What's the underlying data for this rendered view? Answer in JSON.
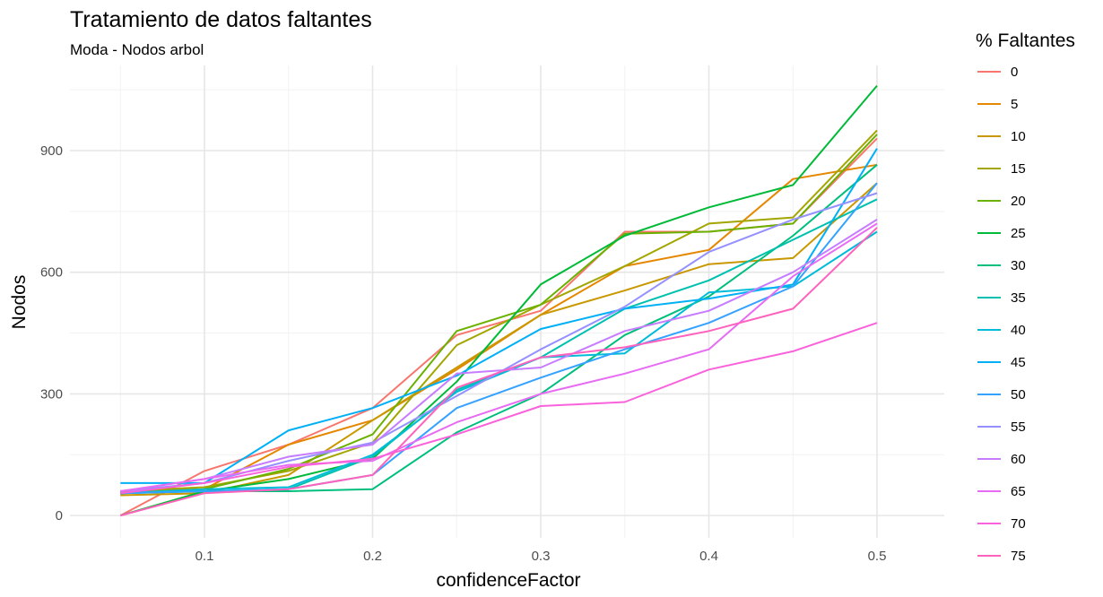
{
  "chart_data": {
    "type": "line",
    "title": "Tratamiento de datos faltantes",
    "subtitle": "Moda - Nodos arbol",
    "xlabel": "confidenceFactor",
    "ylabel": "Nodos",
    "x": [
      0.05,
      0.1,
      0.15,
      0.2,
      0.25,
      0.3,
      0.35,
      0.4,
      0.45,
      0.5
    ],
    "xlim": [
      0.02,
      0.54
    ],
    "ylim": [
      -55,
      1110
    ],
    "x_ticks": [
      "0.1",
      "0.2",
      "0.3",
      "0.4",
      "0.5"
    ],
    "y_ticks": [
      "0",
      "300",
      "600",
      "900"
    ],
    "grid": true,
    "legend_title": "% Faltantes",
    "legend_position": "right",
    "series": [
      {
        "name": "0",
        "color": "#F8766D",
        "values": [
          0,
          110,
          175,
          265,
          445,
          505,
          700,
          700,
          720,
          930
        ]
      },
      {
        "name": "5",
        "color": "#E58700",
        "values": [
          60,
          65,
          175,
          235,
          360,
          495,
          615,
          655,
          830,
          865
        ]
      },
      {
        "name": "10",
        "color": "#C99800",
        "values": [
          50,
          55,
          100,
          235,
          365,
          495,
          555,
          620,
          635,
          820
        ]
      },
      {
        "name": "15",
        "color": "#A3A500",
        "values": [
          60,
          70,
          110,
          180,
          420,
          520,
          615,
          720,
          735,
          950
        ]
      },
      {
        "name": "20",
        "color": "#6BB100",
        "values": [
          55,
          65,
          115,
          200,
          455,
          520,
          695,
          700,
          720,
          940
        ]
      },
      {
        "name": "25",
        "color": "#00BA38",
        "values": [
          0,
          60,
          90,
          140,
          330,
          570,
          690,
          760,
          815,
          1060
        ]
      },
      {
        "name": "30",
        "color": "#00BF7D",
        "values": [
          55,
          60,
          60,
          65,
          205,
          300,
          445,
          540,
          690,
          865
        ]
      },
      {
        "name": "35",
        "color": "#00C0AF",
        "values": [
          55,
          60,
          65,
          145,
          310,
          390,
          510,
          580,
          680,
          780
        ]
      },
      {
        "name": "40",
        "color": "#00BCD8",
        "values": [
          55,
          65,
          70,
          150,
          305,
          390,
          400,
          550,
          565,
          700
        ]
      },
      {
        "name": "45",
        "color": "#00B0F6",
        "values": [
          80,
          80,
          210,
          265,
          345,
          460,
          510,
          535,
          570,
          905
        ]
      },
      {
        "name": "50",
        "color": "#35A2FF",
        "values": [
          55,
          60,
          65,
          100,
          265,
          340,
          410,
          475,
          565,
          820
        ]
      },
      {
        "name": "55",
        "color": "#9590FF",
        "values": [
          60,
          80,
          135,
          180,
          295,
          410,
          515,
          650,
          730,
          795
        ]
      },
      {
        "name": "60",
        "color": "#C77CFF",
        "values": [
          60,
          90,
          145,
          175,
          350,
          365,
          455,
          505,
          600,
          730
        ]
      },
      {
        "name": "65",
        "color": "#E76BF3",
        "values": [
          60,
          90,
          125,
          135,
          230,
          300,
          350,
          410,
          590,
          720
        ]
      },
      {
        "name": "70",
        "color": "#FA62DB",
        "values": [
          55,
          80,
          120,
          140,
          200,
          270,
          280,
          360,
          405,
          475
        ]
      },
      {
        "name": "75",
        "color": "#FF62BC",
        "values": [
          0,
          55,
          65,
          100,
          315,
          390,
          415,
          455,
          510,
          710
        ]
      }
    ]
  }
}
